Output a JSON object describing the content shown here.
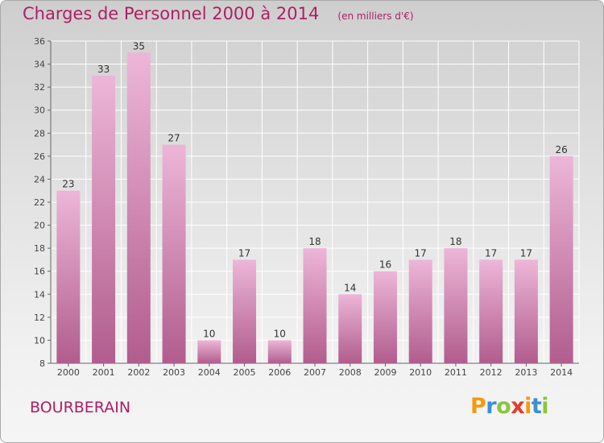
{
  "title": "Charges de Personnel 2000 à 2014",
  "subtitle": "(en milliers d'€)",
  "commune": "BOURBERAIN",
  "logo": {
    "letters": [
      "P",
      "r",
      "o",
      "x",
      "i",
      "t",
      "i"
    ],
    "colors": [
      "#f39a12",
      "#3b8fd6",
      "#8bc53f",
      "#e63a2b",
      "#f39a12",
      "#3b8fd6",
      "#8bc53f"
    ]
  },
  "colors": {
    "title": "#ad1f62",
    "bar_light": "#edb6d8",
    "bar_dark": "#b15d8d"
  },
  "chart_data": {
    "type": "bar",
    "categories": [
      "2000",
      "2001",
      "2002",
      "2003",
      "2004",
      "2005",
      "2006",
      "2007",
      "2008",
      "2009",
      "2010",
      "2011",
      "2012",
      "2013",
      "2014"
    ],
    "values": [
      23,
      33,
      35,
      27,
      10,
      17,
      10,
      18,
      14,
      16,
      17,
      18,
      17,
      17,
      26
    ],
    "ylim": [
      8,
      36
    ],
    "yticks": [
      8,
      10,
      12,
      14,
      16,
      18,
      20,
      22,
      24,
      26,
      28,
      30,
      32,
      34,
      36
    ],
    "grid": true,
    "data_labels": true
  }
}
